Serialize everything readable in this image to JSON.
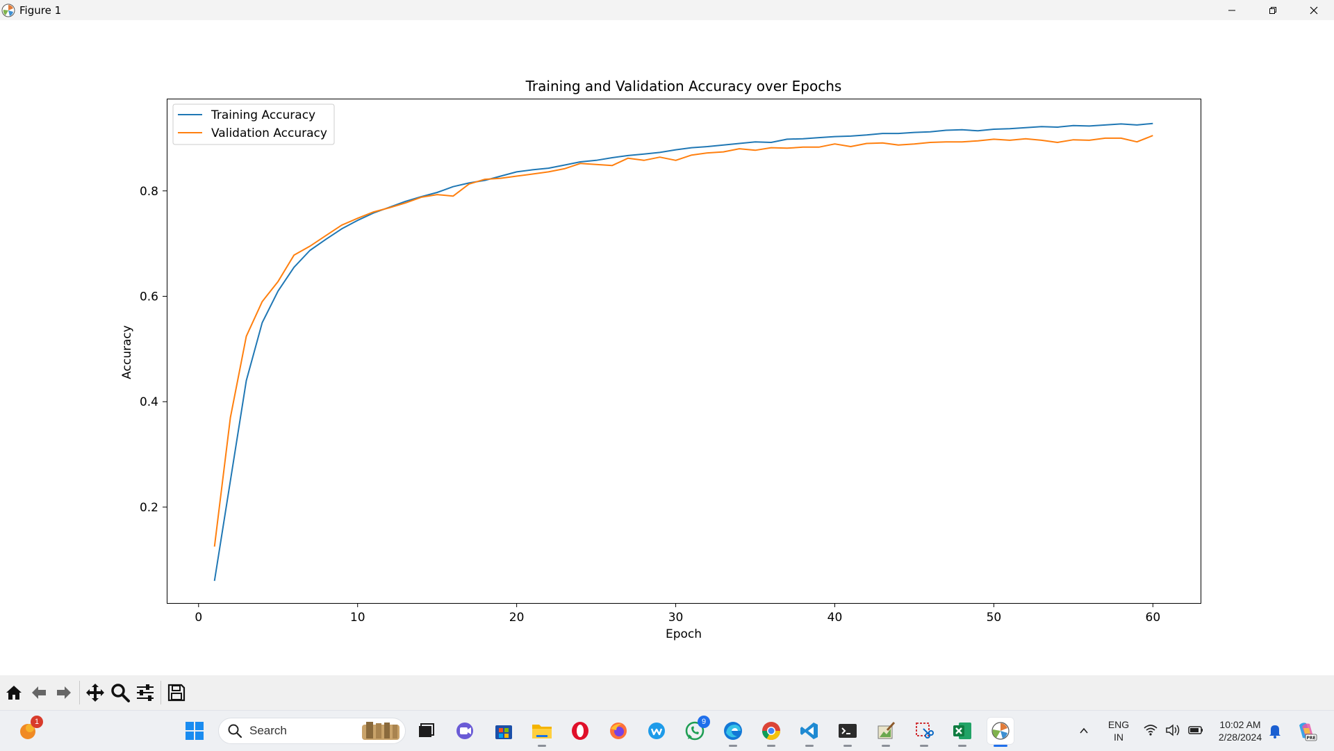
{
  "window": {
    "title": "Figure 1",
    "controls": [
      "minimize-icon",
      "restore-icon",
      "close-icon"
    ]
  },
  "chart_data": {
    "type": "line",
    "title": "Training and Validation Accuracy over Epochs",
    "xlabel": "Epoch",
    "ylabel": "Accuracy",
    "xlim": [
      -2,
      63
    ],
    "ylim": [
      0.018,
      0.975
    ],
    "xticks": [
      0,
      10,
      20,
      30,
      40,
      50,
      60
    ],
    "yticks": [
      0.2,
      0.4,
      0.6,
      0.8
    ],
    "grid": false,
    "legend_position": "upper-left",
    "x": [
      1,
      2,
      3,
      4,
      5,
      6,
      7,
      8,
      9,
      10,
      11,
      12,
      13,
      14,
      15,
      16,
      17,
      18,
      19,
      20,
      21,
      22,
      23,
      24,
      25,
      26,
      27,
      28,
      29,
      30,
      31,
      32,
      33,
      34,
      35,
      36,
      37,
      38,
      39,
      40,
      41,
      42,
      43,
      44,
      45,
      46,
      47,
      48,
      49,
      50,
      51,
      52,
      53,
      54,
      55,
      56,
      57,
      58,
      59,
      60
    ],
    "series": [
      {
        "name": "Training Accuracy",
        "color": "#1f77b4",
        "values": [
          0.06,
          0.25,
          0.44,
          0.55,
          0.61,
          0.655,
          0.687,
          0.708,
          0.728,
          0.744,
          0.758,
          0.769,
          0.78,
          0.789,
          0.797,
          0.808,
          0.815,
          0.82,
          0.828,
          0.836,
          0.84,
          0.843,
          0.849,
          0.855,
          0.858,
          0.863,
          0.867,
          0.87,
          0.873,
          0.878,
          0.882,
          0.884,
          0.887,
          0.89,
          0.893,
          0.892,
          0.898,
          0.899,
          0.901,
          0.903,
          0.904,
          0.906,
          0.909,
          0.909,
          0.911,
          0.912,
          0.915,
          0.916,
          0.914,
          0.917,
          0.918,
          0.92,
          0.922,
          0.921,
          0.924,
          0.923,
          0.925,
          0.927,
          0.925,
          0.928
        ]
      },
      {
        "name": "Validation Accuracy",
        "color": "#ff7f0e",
        "values": [
          0.125,
          0.37,
          0.524,
          0.59,
          0.628,
          0.678,
          0.695,
          0.715,
          0.735,
          0.748,
          0.76,
          0.768,
          0.777,
          0.788,
          0.793,
          0.79,
          0.813,
          0.822,
          0.824,
          0.828,
          0.832,
          0.836,
          0.842,
          0.852,
          0.85,
          0.848,
          0.862,
          0.858,
          0.864,
          0.858,
          0.868,
          0.872,
          0.874,
          0.88,
          0.877,
          0.882,
          0.881,
          0.883,
          0.883,
          0.889,
          0.884,
          0.89,
          0.891,
          0.887,
          0.889,
          0.892,
          0.893,
          0.893,
          0.895,
          0.898,
          0.896,
          0.899,
          0.896,
          0.892,
          0.897,
          0.896,
          0.9,
          0.9,
          0.893,
          0.905
        ]
      }
    ]
  },
  "toolbar": {
    "buttons": [
      "home-icon",
      "back-arrow-icon",
      "forward-arrow-icon",
      "pan-icon",
      "zoom-icon",
      "configure-subplots-icon",
      "save-icon"
    ]
  },
  "taskbar": {
    "search_placeholder": "Search",
    "notification_badge": "1",
    "whatsapp_badge": "9",
    "apps": [
      "widgets-icon",
      "start-icon",
      "task-view-icon",
      "teams-icon",
      "store-icon",
      "file-explorer-icon",
      "opera-icon",
      "firefox-icon",
      "wps-icon",
      "whatsapp-icon",
      "edge-icon",
      "chrome-icon",
      "vscode-icon",
      "terminal-icon",
      "paint-icon",
      "snipping-icon",
      "excel-icon",
      "matplotlib-icon"
    ],
    "language_line1": "ENG",
    "language_line2": "IN",
    "time": "10:02 AM",
    "date": "2/28/2024"
  }
}
